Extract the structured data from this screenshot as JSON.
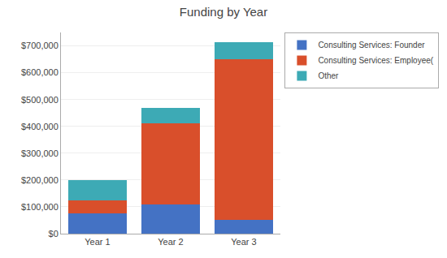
{
  "chart_data": {
    "type": "bar",
    "title": "Funding by Year",
    "categories": [
      "Year 1",
      "Year 2",
      "Year 3"
    ],
    "stacked": true,
    "series": [
      {
        "name": "Consulting Services: Founder",
        "color": "#4472C4",
        "values": [
          75000,
          110000,
          50000
        ]
      },
      {
        "name": "Consulting Services: Employee(",
        "color": "#D94F2B",
        "values": [
          50000,
          300000,
          600000
        ]
      },
      {
        "name": "Other",
        "color": "#3DAAB5",
        "values": [
          75000,
          60000,
          65000
        ]
      }
    ],
    "ylim": [
      0,
      750000
    ],
    "yticks": [
      {
        "value": 0,
        "label": "$0"
      },
      {
        "value": 100000,
        "label": "$100,000"
      },
      {
        "value": 200000,
        "label": "$200,000"
      },
      {
        "value": 300000,
        "label": "$300,000"
      },
      {
        "value": 400000,
        "label": "$400,000"
      },
      {
        "value": 500000,
        "label": "$500,000"
      },
      {
        "value": 600000,
        "label": "$600,000"
      },
      {
        "value": 700000,
        "label": "$700,000"
      }
    ],
    "grid": true,
    "legend": "right"
  }
}
